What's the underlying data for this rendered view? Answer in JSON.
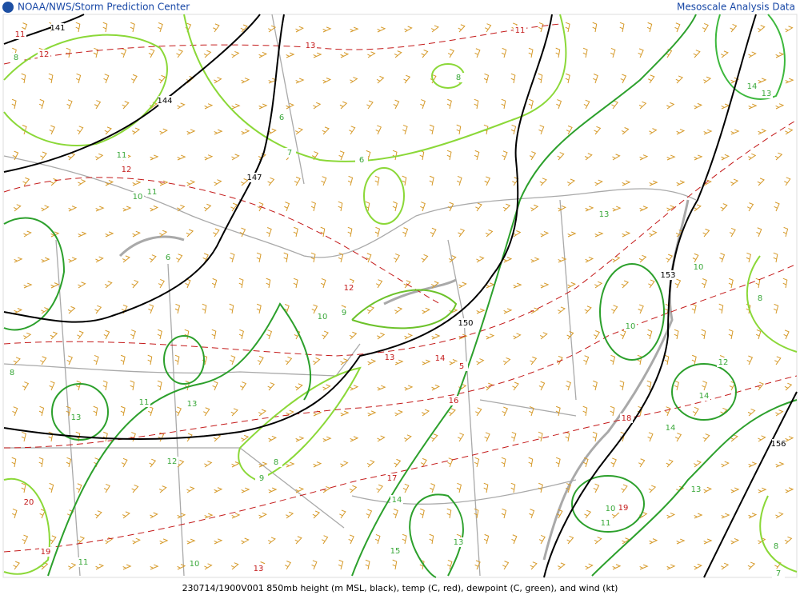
{
  "header": {
    "left": "NOAA/NWS/Storm Prediction Center",
    "right": "Mesoscale Analysis Data"
  },
  "footer": "230714/1900V001 850mb height (m MSL, black), temp (C, red), dewpoint (C, green), and wind (kt)",
  "height_labels": [
    141,
    144,
    147,
    150,
    153,
    156
  ],
  "temp_labels": [
    11,
    12,
    13,
    11,
    12,
    12,
    13,
    14,
    5,
    16,
    18,
    17,
    19,
    19,
    20,
    13
  ],
  "dewpoint_labels": [
    8,
    6,
    7,
    6,
    8,
    11,
    10,
    11,
    6,
    10,
    9,
    14,
    13,
    13,
    10,
    10,
    12,
    14,
    14,
    13,
    13,
    11,
    13,
    12,
    8,
    9,
    14,
    15,
    13,
    10,
    11,
    10,
    11,
    8,
    7,
    8,
    8
  ]
}
